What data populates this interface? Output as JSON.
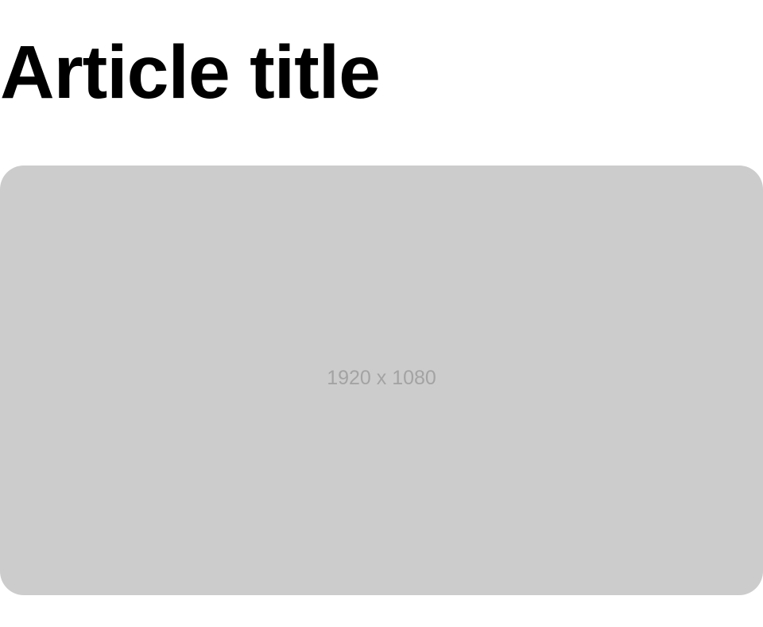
{
  "article": {
    "title": "Article title",
    "image": {
      "placeholder_text": "1920 x 1080",
      "background_color": "#cccccc",
      "text_color": "#a3a3a3"
    }
  }
}
